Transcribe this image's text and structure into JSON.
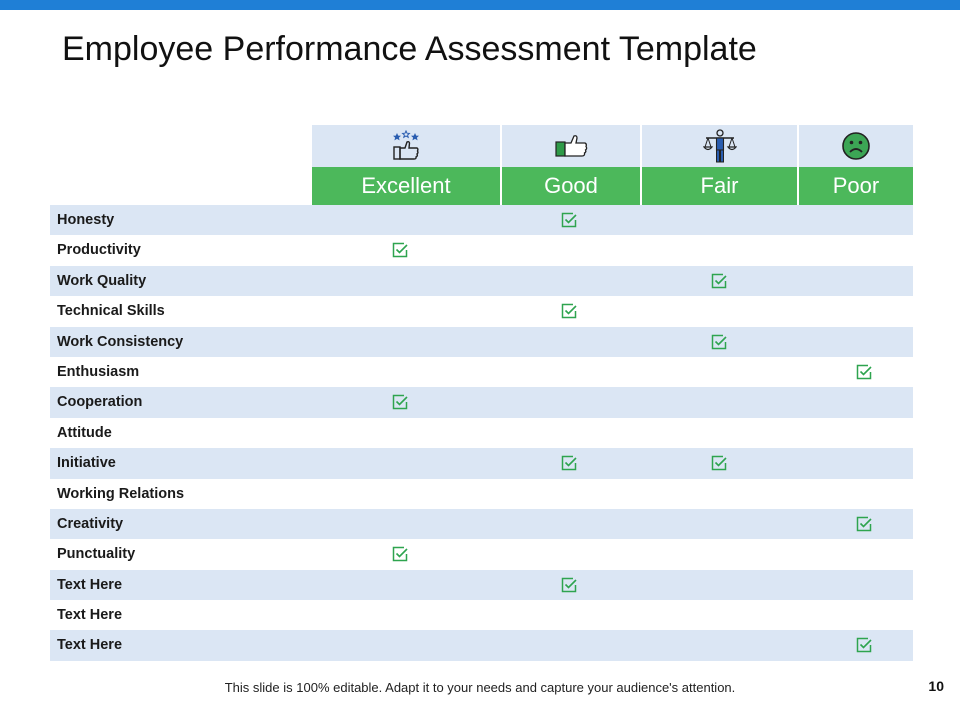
{
  "slide": {
    "title": "Employee Performance Assessment Template",
    "footer": "This slide is 100% editable. Adapt it to your needs and capture your audience's attention.",
    "page_number": "10"
  },
  "colors": {
    "top_bar": "#1f7fd6",
    "header_green": "#4cb85b",
    "row_tint": "#dbe6f4",
    "check_green": "#2ea44f"
  },
  "columns": [
    {
      "label": "Excellent",
      "icon": "stars-thumbs-up-icon"
    },
    {
      "label": "Good",
      "icon": "thumbs-up-icon"
    },
    {
      "label": "Fair",
      "icon": "balance-scale-icon"
    },
    {
      "label": "Poor",
      "icon": "sad-face-icon"
    }
  ],
  "rows": [
    {
      "label": "Honesty",
      "checks": [
        "Good"
      ]
    },
    {
      "label": "Productivity",
      "checks": [
        "Excellent"
      ]
    },
    {
      "label": "Work Quality",
      "checks": [
        "Fair"
      ]
    },
    {
      "label": "Technical Skills",
      "checks": [
        "Good"
      ]
    },
    {
      "label": "Work Consistency",
      "checks": [
        "Fair"
      ]
    },
    {
      "label": "Enthusiasm",
      "checks": [
        "Poor"
      ]
    },
    {
      "label": "Cooperation",
      "checks": [
        "Excellent"
      ]
    },
    {
      "label": "Attitude",
      "checks": []
    },
    {
      "label": "Initiative",
      "checks": [
        "Good",
        "Fair"
      ]
    },
    {
      "label": "Working Relations",
      "checks": []
    },
    {
      "label": "Creativity",
      "checks": [
        "Poor"
      ]
    },
    {
      "label": "Punctuality",
      "checks": [
        "Excellent"
      ]
    },
    {
      "label": "Text Here",
      "checks": [
        "Good"
      ]
    },
    {
      "label": "Text Here",
      "checks": []
    },
    {
      "label": "Text Here",
      "checks": [
        "Poor"
      ]
    }
  ]
}
